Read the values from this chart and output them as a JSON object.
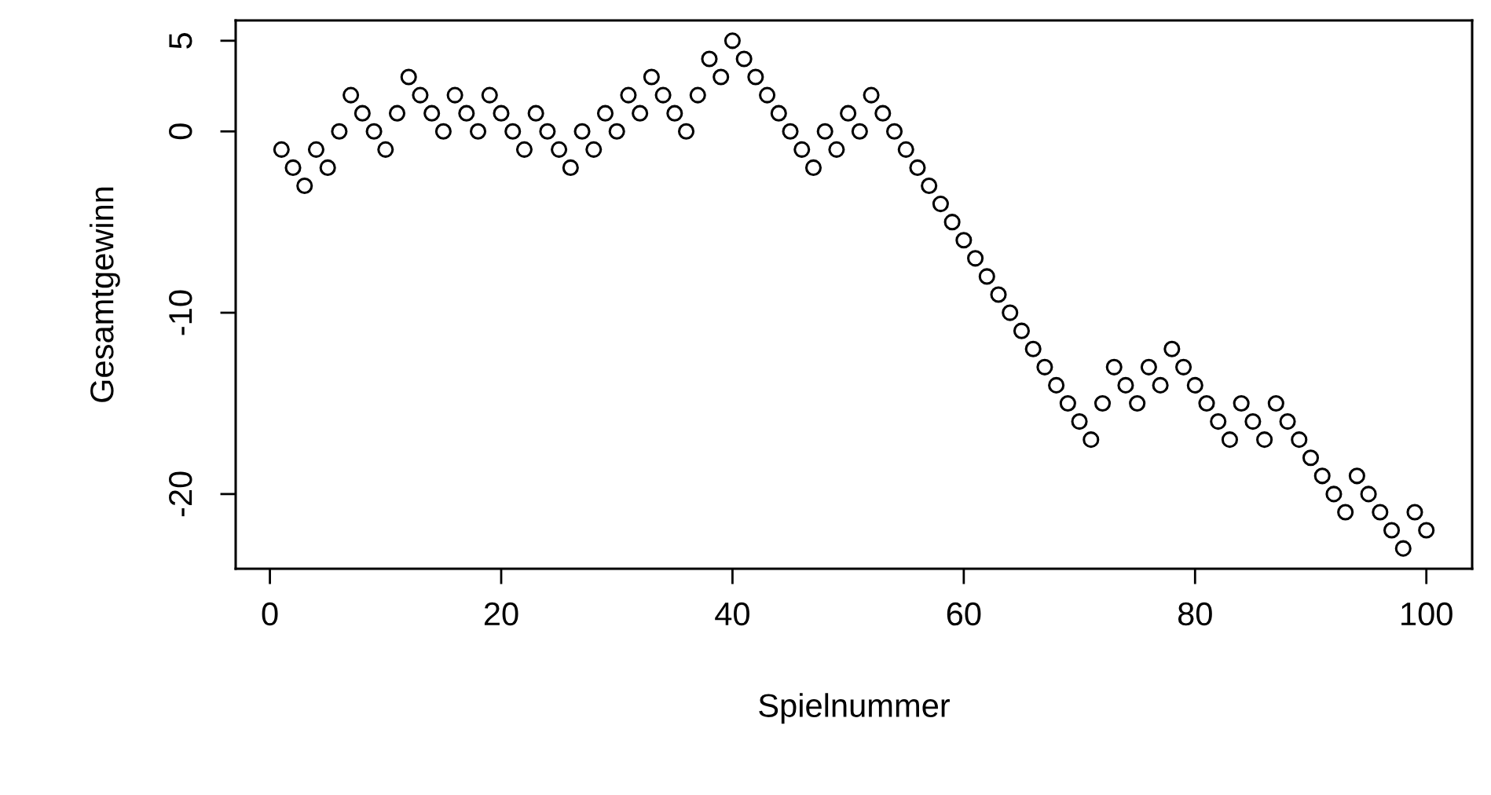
{
  "chart_data": {
    "type": "scatter",
    "xlabel": "Spielnummer",
    "ylabel": "Gesamtgewinn",
    "x": [
      1,
      2,
      3,
      4,
      5,
      6,
      7,
      8,
      9,
      10,
      11,
      12,
      13,
      14,
      15,
      16,
      17,
      18,
      19,
      20,
      21,
      22,
      23,
      24,
      25,
      26,
      27,
      28,
      29,
      30,
      31,
      32,
      33,
      34,
      35,
      36,
      37,
      38,
      39,
      40,
      41,
      42,
      43,
      44,
      45,
      46,
      47,
      48,
      49,
      50,
      51,
      52,
      53,
      54,
      55,
      56,
      57,
      58,
      59,
      60,
      61,
      62,
      63,
      64,
      65,
      66,
      67,
      68,
      69,
      70,
      71,
      72,
      73,
      74,
      75,
      76,
      77,
      78,
      79,
      80,
      81,
      82,
      83,
      84,
      85,
      86,
      87,
      88,
      89,
      90,
      91,
      92,
      93,
      94,
      95,
      96,
      97,
      98,
      99,
      100
    ],
    "series": [
      {
        "color": "#000000",
        "values": [
          -1,
          -2,
          -3,
          -1,
          -2,
          0,
          2,
          1,
          0,
          -1,
          1,
          3,
          2,
          1,
          0,
          2,
          1,
          0,
          2,
          1,
          0,
          -1,
          1,
          0,
          -1,
          -2,
          0,
          -1,
          1,
          0,
          2,
          1,
          3,
          2,
          1,
          0,
          2,
          4,
          3,
          5,
          4,
          3,
          2,
          1,
          0,
          -1,
          -2,
          0,
          -1,
          1,
          0,
          2,
          1,
          0,
          -1,
          -2,
          -3,
          -4,
          -5,
          -6,
          -7,
          -8,
          -9,
          -10,
          -11,
          -12,
          -13,
          -14,
          -15,
          -16,
          -17,
          -15,
          -13,
          -14,
          -15,
          -13,
          -14,
          -12,
          -13,
          -14,
          -15,
          -16,
          -17,
          -15,
          -16,
          -17,
          -15,
          -16,
          -17,
          -18,
          -19,
          -20,
          -21,
          -19,
          -20,
          -21,
          -22,
          -23,
          -21,
          -22
        ]
      }
    ],
    "xlim": [
      -2.96,
      103.96
    ],
    "ylim": [
      -24.12,
      6.12
    ],
    "xticks": [
      0,
      20,
      40,
      60,
      80,
      100
    ],
    "yticks": [
      -20,
      -10,
      0,
      5
    ],
    "marker": "circle",
    "grid": false,
    "legend": false
  }
}
